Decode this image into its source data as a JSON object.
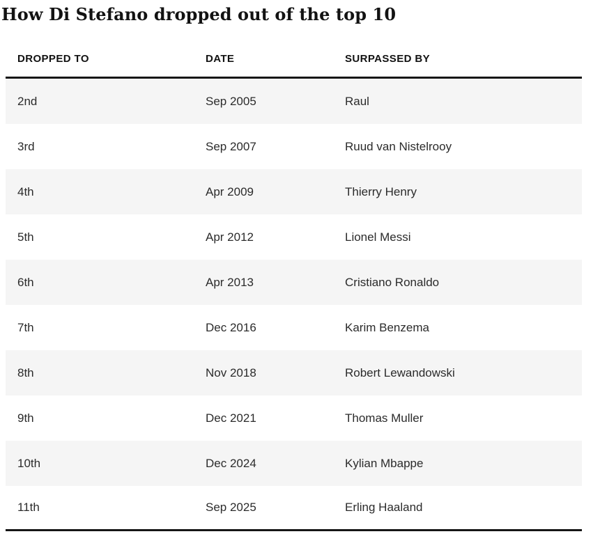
{
  "title": "How Di Stefano dropped out of the top 10",
  "table": {
    "columns": [
      {
        "key": "dropped_to",
        "label": "DROPPED TO"
      },
      {
        "key": "date",
        "label": "DATE"
      },
      {
        "key": "surpassed_by",
        "label": "SURPASSED BY"
      }
    ],
    "rows": [
      {
        "dropped_to": "2nd",
        "date": "Sep 2005",
        "surpassed_by": "Raul"
      },
      {
        "dropped_to": "3rd",
        "date": "Sep 2007",
        "surpassed_by": "Ruud van Nistelrooy"
      },
      {
        "dropped_to": "4th",
        "date": "Apr 2009",
        "surpassed_by": "Thierry Henry"
      },
      {
        "dropped_to": "5th",
        "date": "Apr 2012",
        "surpassed_by": "Lionel Messi"
      },
      {
        "dropped_to": "6th",
        "date": "Apr 2013",
        "surpassed_by": "Cristiano Ronaldo"
      },
      {
        "dropped_to": "7th",
        "date": "Dec 2016",
        "surpassed_by": "Karim Benzema"
      },
      {
        "dropped_to": "8th",
        "date": "Nov 2018",
        "surpassed_by": "Robert Lewandowski"
      },
      {
        "dropped_to": "9th",
        "date": "Dec 2021",
        "surpassed_by": "Thomas Muller"
      },
      {
        "dropped_to": "10th",
        "date": "Dec 2024",
        "surpassed_by": "Kylian Mbappe"
      },
      {
        "dropped_to": "11th",
        "date": "Sep 2025",
        "surpassed_by": "Erling Haaland"
      }
    ]
  },
  "chart_data": {
    "type": "table",
    "title": "How Di Stefano dropped out of the top 10",
    "columns": [
      "DROPPED TO",
      "DATE",
      "SURPASSED BY"
    ],
    "rows": [
      [
        "2nd",
        "Sep 2005",
        "Raul"
      ],
      [
        "3rd",
        "Sep 2007",
        "Ruud van Nistelrooy"
      ],
      [
        "4th",
        "Apr 2009",
        "Thierry Henry"
      ],
      [
        "5th",
        "Apr 2012",
        "Lionel Messi"
      ],
      [
        "6th",
        "Apr 2013",
        "Cristiano Ronaldo"
      ],
      [
        "7th",
        "Dec 2016",
        "Karim Benzema"
      ],
      [
        "8th",
        "Nov 2018",
        "Robert Lewandowski"
      ],
      [
        "9th",
        "Dec 2021",
        "Thomas Muller"
      ],
      [
        "10th",
        "Dec 2024",
        "Kylian Mbappe"
      ],
      [
        "11th",
        "Sep 2025",
        "Erling Haaland"
      ]
    ],
    "layout_hints": {
      "striped_rows": true,
      "stripe_on": "odd",
      "header_rule": "thick-dark",
      "bottom_rule": "thick-dark"
    }
  },
  "colors": {
    "page_background": "#ffffff",
    "row_alt_background": "#f5f5f5",
    "rule": "#161616",
    "header_text": "#121212",
    "body_text": "#2b2b2b"
  }
}
